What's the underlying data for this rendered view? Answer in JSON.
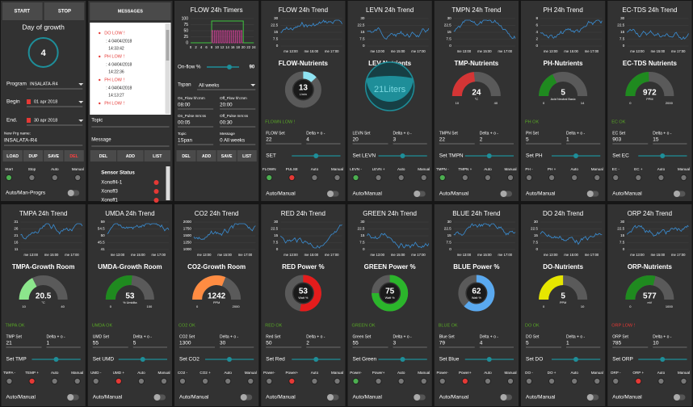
{
  "program_panel": {
    "start": "START",
    "stop": "STOP",
    "day_title": "Day of growth",
    "day": 4,
    "program_label": "Program",
    "program": "INSALATA-R4",
    "begin_label": "Begin",
    "begin": "01 apr 2018",
    "end_label": "End.",
    "end": "30 apr 2018",
    "new_name_label": "New Prg name:",
    "new_name": "INSALATA-R4",
    "buttons": [
      "LOAD",
      "DUP",
      "SAVE",
      "DEL"
    ],
    "switch_labels": [
      "Start",
      "Stop",
      "Auto",
      "Manual"
    ],
    "led_colors": [
      "#4caf50",
      "#777",
      "#777",
      "#777"
    ],
    "mode_label": "Auto/Man-Progrs"
  },
  "messages_panel": {
    "title": "MESSAGES",
    "messages": [
      {
        "alert": "DO LOW !",
        "detail": ": 4 04/04/2018",
        "time": "14:33:42"
      },
      {
        "alert": "PH LOW !",
        "detail": ": 4 04/04/2018",
        "time": "14:22:36"
      },
      {
        "alert": "PH LOW !",
        "detail": ": 4 04/04/2018",
        "time": "14:13:27"
      },
      {
        "alert": "PH LOW !"
      }
    ],
    "topic_label": "Topic",
    "message_label": "Message",
    "buttons": [
      "DEL",
      "ADD",
      "LIST"
    ],
    "sensor_title": "Sensor Status",
    "sensors": [
      "Xonoff4-1",
      "Xonoff3",
      "Xonoff1"
    ]
  },
  "timer_panel": {
    "title": "FLOW 24h Timers",
    "yticks": [
      100,
      75,
      50,
      25,
      0
    ],
    "xticks": [
      0,
      2,
      4,
      6,
      8,
      10,
      12,
      14,
      16,
      18,
      20,
      22,
      24
    ],
    "onflow_label": "On-flow %",
    "onflow": 90,
    "tspan_label": "Tspan",
    "tspan": "All weeks",
    "fields": [
      {
        "label": "On_Flow hh:mm",
        "value": "08:00"
      },
      {
        "label": "Off_Flow hh:mm",
        "value": "20:00"
      },
      {
        "label": "On_Pulse mm:ss",
        "value": "00:05"
      },
      {
        "label": "Off_Pulse mm:ss",
        "value": "00:30"
      },
      {
        "label": "Topic",
        "value": "1Span"
      },
      {
        "label": "Message",
        "value": "0 All weeks"
      }
    ],
    "buttons": [
      "DEL",
      "ADD",
      "SAVE",
      "LIST"
    ]
  },
  "panels": [
    {
      "trend_title": "FLOW 24h Trend",
      "yticks": [
        30,
        22.5,
        15,
        7.5,
        0
      ],
      "xticks": [
        "me 13:00",
        "me 15:00",
        "me 17:00"
      ],
      "title": "FLOW-Nutrients",
      "style": "donut",
      "color": "#8fe3f2",
      "value": 13,
      "unit": "L/min",
      "status": "FLOWN LOW !",
      "status_color": "#59a826",
      "set_label": "FLOW Set",
      "set_value": 22,
      "delta_label": "Delta + o -",
      "delta_value": 4,
      "slider_label": "SET",
      "switch_labels": [
        "FLOWN",
        "PULSE",
        "Auto",
        "Manual"
      ],
      "led_colors": [
        "#4caf50",
        "#e53935",
        "#777",
        "#777"
      ],
      "mode_label": "Auto/Manual"
    },
    {
      "trend_title": "LEVN 24h Trend",
      "yticks": [
        30,
        22.5,
        15,
        7.5,
        0
      ],
      "xticks": [
        "me 13:00",
        "me 15:00",
        "me 17:00"
      ],
      "title": "LEV-Nutrients",
      "style": "tank",
      "color": "#1e8e99",
      "label": "21Liters",
      "set_label": "LEVN Set",
      "set_value": 20,
      "delta_label": "Delta + o -",
      "delta_value": 3,
      "slider_label": "Set LEVN",
      "switch_labels": [
        "LEVN -",
        "LEVN +",
        "Auto",
        "Manual"
      ],
      "led_colors": [
        "#4caf50",
        "#777",
        "#777",
        "#777"
      ],
      "mode_label": "Auto/Manual"
    },
    {
      "trend_title": "TMPN 24h Trend",
      "yticks": [
        30,
        22.5,
        15,
        7.5,
        0
      ],
      "xticks": [
        "me 13:00",
        "me 15:00",
        "me 17:00"
      ],
      "title": "TMP-Nutrients",
      "style": "gauge",
      "color": "#d43535",
      "value": 24,
      "unit": "°C",
      "min": 10,
      "max": 40,
      "set_label": "TMPN Set",
      "set_value": 22,
      "delta_label": "Delta + o -",
      "delta_value": 2,
      "slider_label": "Set TMPN",
      "switch_labels": [
        "TMPN -",
        "TMPN +",
        "Auto",
        "Manual"
      ],
      "led_colors": [
        "#4caf50",
        "#777",
        "#777",
        "#777"
      ],
      "mode_label": "Auto/Manual"
    },
    {
      "trend_title": "PH 24h Trend",
      "yticks": [
        8,
        6,
        4,
        2,
        0
      ],
      "xticks": [
        "me 13:00",
        "me 15:00",
        "me 17:00"
      ],
      "title": "PH-Nutrients",
      "style": "gauge",
      "color": "#1f8a1f",
      "value": 5,
      "unit": "Acid Neutral Basic",
      "min": 0,
      "max": 14,
      "status": "PH OK",
      "status_color": "#59a826",
      "set_label": "PH Set",
      "set_value": 5,
      "delta_label": "Delta + o -",
      "delta_value": 1,
      "slider_label": "Set PH",
      "switch_labels": [
        "PH -",
        "PH +",
        "Auto",
        "Manual"
      ],
      "led_colors": [
        "#777",
        "#777",
        "#777",
        "#777"
      ],
      "mode_label": "Auto/Manual"
    },
    {
      "trend_title": "EC-TDS 24h Trend",
      "yticks": [
        30,
        22.5,
        15,
        7.5,
        0
      ],
      "xticks": [
        "me 13:00",
        "me 15:00",
        "me 17:00"
      ],
      "title": "EC-TDS Nutrients",
      "style": "gauge",
      "color": "#1f8a1f",
      "value": 972,
      "unit": "PPM",
      "min": 0,
      "max": 2000,
      "status": "EC OK",
      "status_color": "#59a826",
      "set_label": "EC Set",
      "set_value": 903,
      "delta_label": "Delta + o -",
      "delta_value": 15,
      "slider_label": "Set EC",
      "switch_labels": [
        "EC -",
        "EC +",
        "Auto",
        "Manual"
      ],
      "led_colors": [
        "#777",
        "#777",
        "#777",
        "#777"
      ],
      "mode_label": "Auto/Manual"
    },
    {
      "trend_title": "TMPA 24h Trend",
      "yticks": [
        31,
        26,
        21,
        16,
        11
      ],
      "xticks": [
        "me 13:00",
        "me 15:00",
        "me 17:00"
      ],
      "title": "TMPA-Growth Room",
      "style": "gauge",
      "color": "#8ce68c",
      "value": 20.5,
      "unit": "°C",
      "min": 10,
      "max": 40,
      "status": "TMPA OK",
      "status_color": "#59a826",
      "set_label": "TMP Set",
      "set_value": 21,
      "delta_label": "Delta + o -",
      "delta_value": 1,
      "slider_label": "Set TMP",
      "switch_labels": [
        "TMPA -",
        "TEMP +",
        "Auto",
        "Manual"
      ],
      "led_colors": [
        "#777",
        "#e53935",
        "#777",
        "#777"
      ],
      "mode_label": "Auto/Manual"
    },
    {
      "trend_title": "UMDA 24h Trend",
      "yticks": [
        59,
        54.5,
        50,
        45.5,
        41
      ],
      "xticks": [
        "me 13:00",
        "me 15:00",
        "me 17:00"
      ],
      "title": "UMDA-Growth Room",
      "style": "gauge",
      "color": "#1f8a1f",
      "value": 53,
      "unit": "% Umidita",
      "min": 0,
      "max": 100,
      "status": "UMDA OK",
      "status_color": "#59a826",
      "set_label": "UMD Set",
      "set_value": 55,
      "delta_label": "Delta + o -",
      "delta_value": 5,
      "slider_label": "Set UMD",
      "switch_labels": [
        "UMD -",
        "UMD +",
        "Auto",
        "Manual"
      ],
      "led_colors": [
        "#777",
        "#e53935",
        "#777",
        "#777"
      ],
      "mode_label": "Auto/Manual"
    },
    {
      "trend_title": "CO2 24h Trend",
      "yticks": [
        2000,
        1750,
        1500,
        1250,
        1000
      ],
      "xticks": [
        "me 13:00",
        "me 15:00",
        "me 17:00"
      ],
      "title": "CO2-Growth Room",
      "style": "gauge",
      "color": "#ff8c42",
      "value": 1242,
      "unit": "PPM",
      "min": 0,
      "max": 2000,
      "status": "CO2 OK",
      "status_color": "#59a826",
      "set_label": "CO2 Set",
      "set_value": 1300,
      "delta_label": "Delta + o -",
      "delta_value": 30,
      "slider_label": "Set CO2",
      "switch_labels": [
        "CO2 -",
        "CO2 +",
        "Auto",
        "Manual"
      ],
      "led_colors": [
        "#777",
        "#777",
        "#777",
        "#777"
      ],
      "mode_label": "Auto/Manual"
    },
    {
      "trend_title": "RED 24h Trend",
      "yticks": [
        30,
        22.5,
        15,
        7.5,
        0
      ],
      "xticks": [
        "me 13:00",
        "me 15:00",
        "me 17:00"
      ],
      "title": "RED Power %",
      "style": "donut",
      "color": "#e51c1c",
      "value": 53,
      "unit": "Watt %",
      "status": "RED OK",
      "status_color": "#59a826",
      "set_label": "Red Set",
      "set_value": 50,
      "delta_label": "Delta + o -",
      "delta_value": 2,
      "slider_label": "Set Red",
      "switch_labels": [
        "Power-",
        "Power+",
        "Auto",
        "Manual"
      ],
      "led_colors": [
        "#777",
        "#e53935",
        "#777",
        "#777"
      ],
      "mode_label": "Auto/Manual"
    },
    {
      "trend_title": "GREEN 24h Trend",
      "yticks": [
        30,
        22.5,
        15,
        7.5,
        0
      ],
      "xticks": [
        "me 13:00",
        "me 15:00",
        "me 17:00"
      ],
      "title": "GREEN Power %",
      "style": "donut",
      "color": "#2bb52b",
      "value": 75,
      "unit": "Watt %",
      "status": "GREEN OK",
      "status_color": "#59a826",
      "set_label": "Green Set",
      "set_value": 55,
      "delta_label": "Delta + o -",
      "delta_value": 3,
      "slider_label": "Set Green",
      "switch_labels": [
        "Power-",
        "Power+",
        "Auto",
        "Manual"
      ],
      "led_colors": [
        "#4caf50",
        "#777",
        "#777",
        "#777"
      ],
      "mode_label": "Auto/Manual"
    },
    {
      "trend_title": "BLUE 24h Trend",
      "yticks": [
        30,
        22.5,
        15,
        7.5,
        0
      ],
      "xticks": [
        "me 13:00",
        "me 15:00",
        "me 17:00"
      ],
      "title": "BLUE Power %",
      "style": "donut",
      "color": "#5aa9ef",
      "value": 62,
      "unit": "Watt %",
      "status": "BLUE OK",
      "status_color": "#59a826",
      "set_label": "Blue Set",
      "set_value": 79,
      "delta_label": "Delta + o -",
      "delta_value": 4,
      "slider_label": "Set Blue",
      "switch_labels": [
        "Power-",
        "Power+",
        "Auto",
        "Manual"
      ],
      "led_colors": [
        "#777",
        "#e53935",
        "#777",
        "#777"
      ],
      "mode_label": "Auto/Manual"
    },
    {
      "trend_title": "DO 24h Trend",
      "yticks": [
        30,
        22.5,
        15,
        7.5,
        0
      ],
      "xticks": [
        "me 13:00",
        "me 15:00",
        "me 17:00"
      ],
      "title": "DO-Nutrients",
      "style": "gauge",
      "color": "#e6e600",
      "value": 5,
      "unit": "PPM",
      "min": 0,
      "max": 10,
      "status": "DO OK",
      "status_color": "#59a826",
      "set_label": "DO Set",
      "set_value": 5,
      "delta_label": "Delta + o -",
      "delta_value": 1,
      "slider_label": "Set DO",
      "switch_labels": [
        "DO -",
        "DO +",
        "Auto",
        "Manual"
      ],
      "led_colors": [
        "#777",
        "#777",
        "#777",
        "#777"
      ],
      "mode_label": "Auto/Manual"
    },
    {
      "trend_title": "ORP 24h Trend",
      "yticks": [
        30,
        22.5,
        15,
        7.5,
        0
      ],
      "xticks": [
        "me 13:00",
        "me 15:00",
        "me 17:00"
      ],
      "title": "ORP-Nutrients",
      "style": "gauge",
      "color": "#1f8a1f",
      "value": 577,
      "unit": "mV",
      "min": 0,
      "max": 1000,
      "status": "ORP LOW !",
      "status_color": "#e53935",
      "set_label": "ORP Set",
      "set_value": 785,
      "delta_label": "Delta + o -",
      "delta_value": 10,
      "slider_label": "Set ORP",
      "switch_labels": [
        "ORP -",
        "ORP +",
        "Auto",
        "Manual"
      ],
      "led_colors": [
        "#777",
        "#e53935",
        "#777",
        "#777"
      ],
      "mode_label": "Auto/Manual"
    }
  ]
}
